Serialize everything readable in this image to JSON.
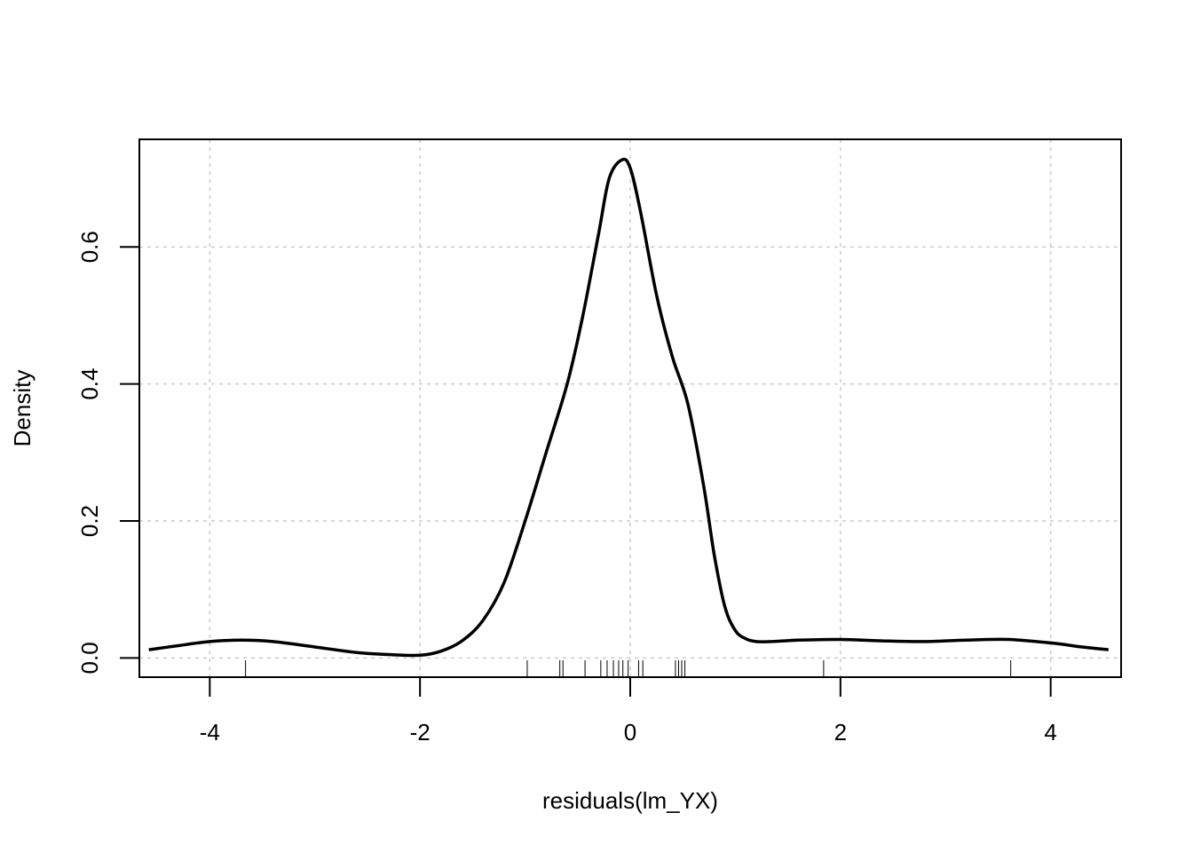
{
  "chart_data": {
    "type": "line",
    "title": "",
    "xlabel": "residuals(lm_YX)",
    "ylabel": "Density",
    "xlim": [
      -4.67,
      4.67
    ],
    "ylim": [
      -0.028,
      0.757
    ],
    "grid": true,
    "x_ticks": [
      -4,
      -2,
      0,
      2,
      4
    ],
    "x_tick_labels": [
      "-4",
      "-2",
      "0",
      "2",
      "4"
    ],
    "y_ticks": [
      0.0,
      0.2,
      0.4,
      0.6
    ],
    "y_tick_labels": [
      "0.0",
      "0.2",
      "0.4",
      "0.6"
    ],
    "series": [
      {
        "x": [
          -4.58,
          -4.3,
          -4.0,
          -3.7,
          -3.4,
          -3.0,
          -2.6,
          -2.3,
          -2.0,
          -1.8,
          -1.6,
          -1.4,
          -1.2,
          -1.0,
          -0.8,
          -0.6,
          -0.45,
          -0.3,
          -0.2,
          -0.08,
          0.0,
          0.1,
          0.25,
          0.4,
          0.55,
          0.7,
          0.8,
          0.9,
          1.0,
          1.1,
          1.2,
          1.35,
          1.6,
          2.0,
          2.4,
          2.8,
          3.2,
          3.6,
          4.0,
          4.3,
          4.55
        ],
        "y": [
          0.012,
          0.018,
          0.024,
          0.026,
          0.024,
          0.016,
          0.008,
          0.005,
          0.004,
          0.01,
          0.025,
          0.055,
          0.11,
          0.2,
          0.3,
          0.4,
          0.5,
          0.62,
          0.7,
          0.727,
          0.715,
          0.65,
          0.53,
          0.44,
          0.37,
          0.25,
          0.15,
          0.075,
          0.04,
          0.028,
          0.024,
          0.024,
          0.026,
          0.027,
          0.025,
          0.024,
          0.026,
          0.027,
          0.022,
          0.016,
          0.012
        ]
      }
    ],
    "rug": [
      -3.66,
      -0.98,
      -0.67,
      -0.64,
      -0.43,
      -0.28,
      -0.22,
      -0.16,
      -0.11,
      -0.07,
      -0.02,
      0.08,
      0.12,
      0.43,
      0.46,
      0.49,
      0.52,
      1.84,
      3.62
    ]
  }
}
